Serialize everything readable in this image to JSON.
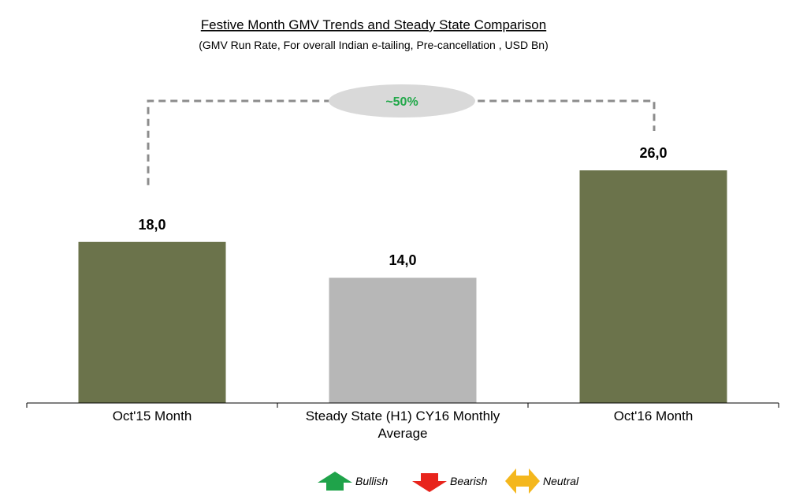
{
  "chart_data": {
    "type": "bar",
    "title": "Festive Month GMV Trends and Steady State Comparison",
    "subtitle": "(GMV Run Rate, For overall Indian e-tailing, Pre-cancellation , USD Bn)",
    "categories": [
      [
        "Oct'15 Month"
      ],
      [
        "Steady State (H1) CY16 Monthly",
        "Average"
      ],
      [
        "Oct'16 Month"
      ]
    ],
    "values": [
      18.0,
      14.0,
      26.0
    ],
    "value_labels": [
      "18,0",
      "14,0",
      "26,0"
    ],
    "bar_colors": [
      "#6b734b",
      "#b7b7b7",
      "#6b734b"
    ],
    "ylim": [
      0,
      28
    ],
    "grid": false,
    "xlabel": "",
    "ylabel": "",
    "annotation": {
      "label": "~50%",
      "from_category": 0,
      "to_category": 2,
      "color": "#22a84a"
    }
  },
  "legend": [
    {
      "label": "Bullish",
      "icon": "up-arrow-icon",
      "color": "#1fa34a"
    },
    {
      "label": "Bearish",
      "icon": "down-arrow-icon",
      "color": "#e8241c"
    },
    {
      "label": "Neutral",
      "icon": "left-right-arrow-icon",
      "color": "#f4b71d"
    }
  ]
}
